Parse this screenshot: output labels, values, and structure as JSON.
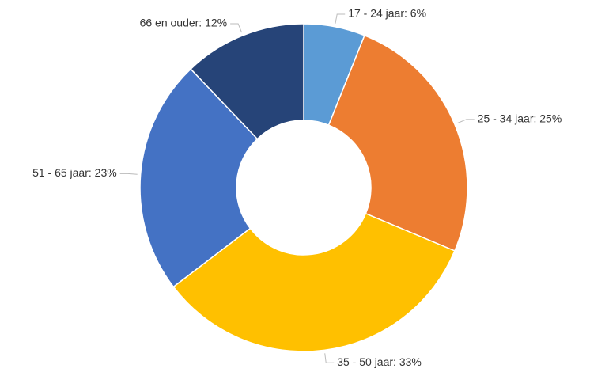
{
  "chart_data": {
    "type": "donut",
    "values": [
      6,
      25,
      33,
      23,
      12
    ],
    "value_labels": [
      "17 - 24 jaar: 6%",
      "25 - 34 jaar: 25%",
      "35 - 50 jaar: 33%",
      "51 - 65 jaar: 23%",
      "66 en ouder: 12%"
    ],
    "colors": [
      "#5b9bd5",
      "#ed7d31",
      "#ffc000",
      "#4472c4",
      "#264478"
    ]
  }
}
